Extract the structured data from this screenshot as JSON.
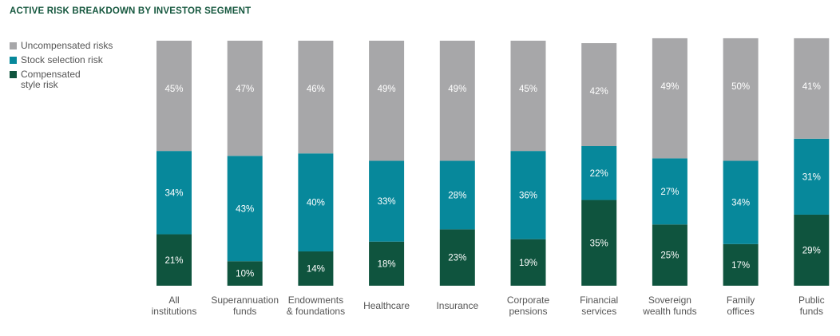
{
  "title": "ACTIVE RISK BREAKDOWN BY INVESTOR SEGMENT",
  "colors": {
    "uncompensated": "#a7a7a9",
    "stock_selection": "#07889b",
    "compensated": "#0f543e",
    "title": "#15573e"
  },
  "legend": [
    {
      "label": "Uncompensated risks",
      "color": "#a7a7a9"
    },
    {
      "label": "Stock selection risk",
      "color": "#07889b"
    },
    {
      "label": "Compensated\nstyle risk",
      "color": "#0f543e"
    }
  ],
  "chart_data": {
    "type": "bar",
    "stacked": true,
    "title": "ACTIVE RISK BREAKDOWN BY INVESTOR SEGMENT",
    "categories": [
      "All\ninstitutions",
      "Superannuation\nfunds",
      "Endowments\n& foundations",
      "Healthcare",
      "Insurance",
      "Corporate\npensions",
      "Financial\nservices",
      "Sovereign\nwealth funds",
      "Family\noffices",
      "Public\nfunds"
    ],
    "series": [
      {
        "name": "Compensated style risk",
        "values": [
          21,
          10,
          14,
          18,
          23,
          19,
          35,
          25,
          17,
          29
        ],
        "color": "#0f543e"
      },
      {
        "name": "Stock selection risk",
        "values": [
          34,
          43,
          40,
          33,
          28,
          36,
          22,
          27,
          34,
          31
        ],
        "color": "#07889b"
      },
      {
        "name": "Uncompensated risks",
        "values": [
          45,
          47,
          46,
          49,
          49,
          45,
          42,
          49,
          50,
          41
        ],
        "color": "#a7a7a9"
      }
    ],
    "value_suffix": "%",
    "ylim": [
      0,
      100
    ],
    "legend_position": "top-left",
    "grid": false
  }
}
